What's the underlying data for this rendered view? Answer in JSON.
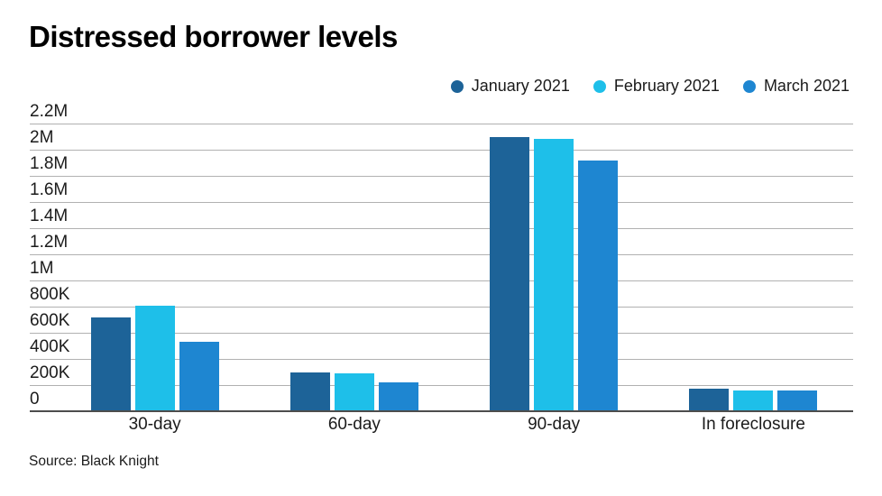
{
  "header": {
    "title": "Distressed borrower levels"
  },
  "footer": {
    "source": "Source: Black Knight"
  },
  "colors": {
    "background": "#ffffff",
    "gridline": "#b1b1b1",
    "baseline": "#4d4d4d",
    "text": "#1b1b1b",
    "title": "#000000"
  },
  "chart_data": {
    "type": "bar",
    "title": "Distressed borrower levels",
    "categories": [
      "30-day",
      "60-day",
      "90-day",
      "In foreclosure"
    ],
    "series": [
      {
        "name": "January 2021",
        "color": "#1d6398",
        "values": [
          720000,
          300000,
          2100000,
          170000
        ]
      },
      {
        "name": "February 2021",
        "color": "#1ebfe9",
        "values": [
          810000,
          290000,
          2080000,
          160000
        ]
      },
      {
        "name": "March 2021",
        "color": "#1e86d1",
        "values": [
          530000,
          220000,
          1920000,
          157000
        ]
      }
    ],
    "ylim": [
      0,
      2200000
    ],
    "ytick_step": 200000,
    "ytick_labels": [
      "0",
      "200K",
      "400K",
      "600K",
      "800K",
      "1M",
      "1.2M",
      "1.4M",
      "1.6M",
      "1.8M",
      "2M",
      "2.2M"
    ],
    "grid": "horizontal",
    "legend_position": "top-right",
    "source": "Source: Black Knight"
  }
}
